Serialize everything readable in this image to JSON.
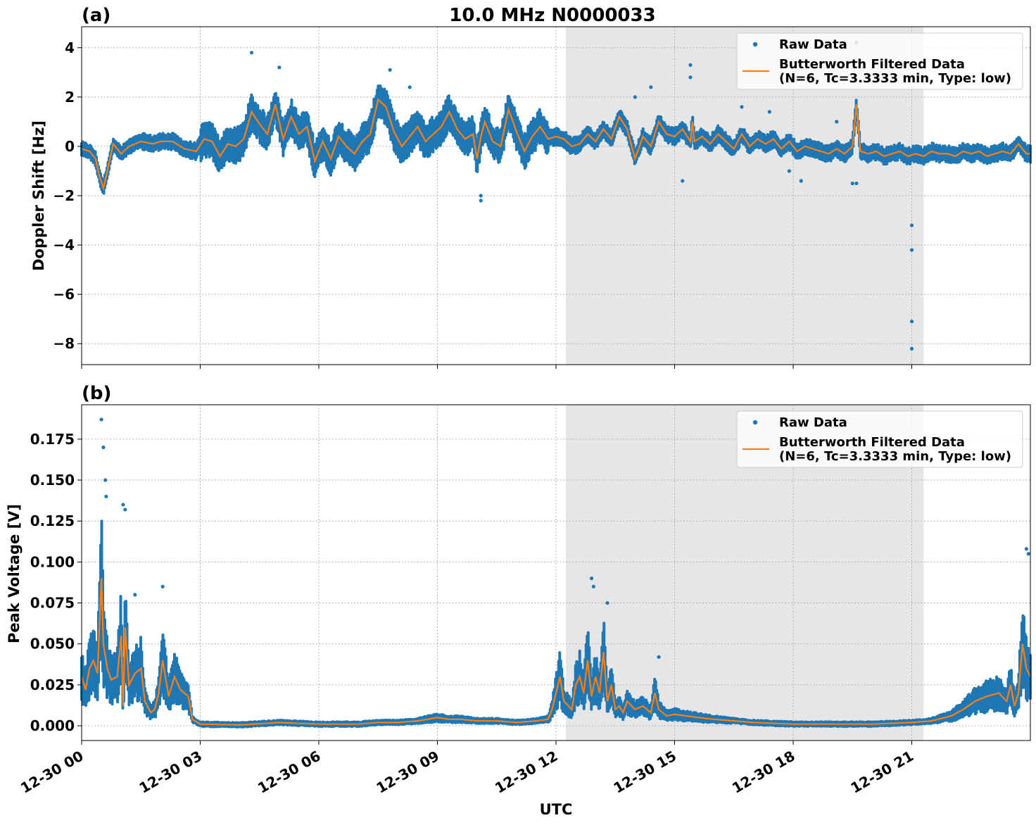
{
  "figure": {
    "title": "10.0 MHz N0000033",
    "xlabel": "UTC",
    "x_tick_labels": [
      "12-30 00",
      "12-30 03",
      "12-30 06",
      "12-30 09",
      "12-30 12",
      "12-30 15",
      "12-30 18",
      "12-30 21"
    ]
  },
  "colors": {
    "raw": "#1f77b4",
    "filtered": "#ff7f0e",
    "shade": "#e6e6e6"
  },
  "chart_data": [
    {
      "type": "scatter",
      "panel_label": "(a)",
      "ylabel": "Doppler Shift [Hz]",
      "xlabel": "UTC",
      "x_units": "hours UTC on 12-30",
      "xlim": [
        0,
        24
      ],
      "ylim": [
        -8.85,
        4.85
      ],
      "yticks": [
        4,
        2,
        0,
        -2,
        -4,
        -6,
        -8
      ],
      "ytick_labels": [
        "4",
        "2",
        "0",
        "−2",
        "−4",
        "−6",
        "−8"
      ],
      "grid": true,
      "shaded_interval": [
        12.25,
        21.3
      ],
      "legend": {
        "position": "upper right",
        "raw_label": "Raw Data",
        "filtered_label_line1": "Butterworth Filtered Data",
        "filtered_label_line2": "(N=6, Tc=3.3333 min, Type: low)"
      },
      "series": [
        {
          "name": "Butterworth Filtered Data",
          "x": [
            0,
            0.2,
            0.35,
            0.45,
            0.55,
            0.65,
            0.8,
            1.0,
            1.2,
            1.5,
            1.8,
            2.0,
            2.3,
            2.6,
            2.9,
            3.1,
            3.3,
            3.5,
            3.7,
            3.9,
            4.1,
            4.3,
            4.5,
            4.7,
            4.9,
            5.1,
            5.3,
            5.5,
            5.7,
            5.9,
            6.1,
            6.3,
            6.5,
            6.7,
            6.9,
            7.1,
            7.3,
            7.5,
            7.7,
            7.9,
            8.1,
            8.3,
            8.5,
            8.7,
            8.9,
            9.1,
            9.3,
            9.5,
            9.7,
            9.9,
            10.0,
            10.1,
            10.2,
            10.4,
            10.6,
            10.8,
            11.0,
            11.2,
            11.4,
            11.6,
            11.8,
            12.0,
            12.2,
            12.4,
            12.6,
            12.8,
            13.0,
            13.2,
            13.4,
            13.6,
            13.8,
            14.0,
            14.2,
            14.4,
            14.6,
            14.8,
            15.0,
            15.2,
            15.4,
            15.45,
            15.5,
            15.7,
            15.9,
            16.1,
            16.3,
            16.5,
            16.7,
            16.9,
            17.1,
            17.3,
            17.5,
            17.7,
            17.9,
            18.1,
            18.3,
            18.5,
            18.7,
            18.9,
            19.1,
            19.3,
            19.5,
            19.6,
            19.7,
            19.9,
            20.1,
            20.3,
            20.5,
            20.7,
            20.9,
            21.1,
            21.3,
            21.5,
            21.7,
            21.9,
            22.1,
            22.3,
            22.5,
            22.7,
            22.9,
            23.1,
            23.3,
            23.5,
            23.7,
            23.9,
            24.0
          ],
          "y": [
            -0.1,
            -0.2,
            -0.5,
            -1.2,
            -1.7,
            -1.0,
            0.1,
            -0.3,
            0.0,
            0.2,
            0.1,
            0.2,
            0.2,
            -0.1,
            -0.2,
            0.3,
            0.2,
            -0.4,
            0.1,
            0.0,
            0.3,
            1.4,
            0.9,
            0.5,
            1.7,
            0.3,
            1.2,
            0.5,
            0.8,
            -0.6,
            0.2,
            -0.5,
            0.4,
            0.0,
            -0.3,
            0.2,
            0.5,
            1.9,
            1.6,
            0.6,
            0.0,
            0.4,
            0.8,
            0.2,
            0.5,
            0.8,
            1.4,
            0.7,
            0.3,
            0.5,
            -0.5,
            0.4,
            1.0,
            0.2,
            0.0,
            1.5,
            0.6,
            -0.2,
            0.4,
            0.8,
            0.3,
            0.4,
            0.3,
            0.0,
            0.1,
            0.5,
            0.2,
            0.7,
            0.3,
            1.2,
            0.7,
            -0.5,
            0.4,
            0.0,
            1.0,
            0.5,
            0.4,
            0.7,
            0.2,
            1.0,
            0.2,
            0.4,
            0.1,
            0.5,
            0.2,
            -0.1,
            0.5,
            0.0,
            0.3,
            0.1,
            0.3,
            -0.1,
            0.2,
            -0.2,
            0.0,
            -0.1,
            -0.2,
            -0.3,
            -0.1,
            -0.3,
            0.0,
            1.7,
            -0.2,
            -0.3,
            -0.2,
            -0.4,
            -0.3,
            -0.2,
            -0.4,
            -0.3,
            -0.4,
            -0.2,
            -0.3,
            -0.3,
            -0.4,
            -0.2,
            -0.3,
            -0.2,
            -0.4,
            -0.3,
            -0.2,
            -0.3,
            0.1,
            -0.3,
            -0.3
          ]
        },
        {
          "name": "Raw Data",
          "outliers_x": [
            4.3,
            5.0,
            7.8,
            8.3,
            10.1,
            10.1,
            14.0,
            14.4,
            15.4,
            15.4,
            15.2,
            16.7,
            17.4,
            17.9,
            18.2,
            19.1,
            19.5,
            19.6,
            19.6,
            21.0,
            21.0,
            21.0,
            21.0
          ],
          "outliers_y": [
            3.8,
            3.2,
            3.1,
            2.4,
            -2.2,
            -2.0,
            2.0,
            2.4,
            3.3,
            2.8,
            -1.4,
            1.6,
            1.4,
            -1.0,
            -1.4,
            1.0,
            -1.5,
            4.2,
            -1.5,
            -3.2,
            -4.2,
            -7.1,
            -8.2
          ]
        }
      ]
    },
    {
      "type": "scatter",
      "panel_label": "(b)",
      "ylabel": "Peak Voltage [V]",
      "xlabel": "UTC",
      "x_units": "hours UTC on 12-30",
      "xlim": [
        0,
        24
      ],
      "ylim": [
        -0.009,
        0.196
      ],
      "yticks": [
        0.0,
        0.025,
        0.05,
        0.075,
        0.1,
        0.125,
        0.15,
        0.175
      ],
      "ytick_labels": [
        "0.000",
        "0.025",
        "0.050",
        "0.075",
        "0.100",
        "0.125",
        "0.150",
        "0.175"
      ],
      "grid": true,
      "shaded_interval": [
        12.25,
        21.3
      ],
      "legend": {
        "position": "upper right",
        "raw_label": "Raw Data",
        "filtered_label_line1": "Butterworth Filtered Data",
        "filtered_label_line2": "(N=6, Tc=3.3333 min, Type: low)"
      },
      "series": [
        {
          "name": "Butterworth Filtered Data",
          "x": [
            0,
            0.1,
            0.2,
            0.3,
            0.4,
            0.5,
            0.55,
            0.65,
            0.75,
            0.9,
            1.0,
            1.05,
            1.1,
            1.2,
            1.35,
            1.5,
            1.6,
            1.75,
            1.85,
            1.95,
            2.05,
            2.2,
            2.35,
            2.5,
            2.7,
            2.8,
            3.0,
            4.0,
            5.0,
            5.5,
            6.0,
            7.0,
            7.5,
            8.0,
            8.5,
            9.0,
            9.3,
            9.6,
            10.0,
            10.5,
            11.0,
            11.5,
            11.8,
            11.9,
            12.0,
            12.1,
            12.2,
            12.4,
            12.5,
            12.6,
            12.7,
            12.8,
            12.9,
            13.0,
            13.1,
            13.2,
            13.3,
            13.4,
            13.5,
            13.6,
            13.7,
            13.8,
            14.0,
            14.2,
            14.4,
            14.5,
            14.6,
            14.8,
            15.0,
            15.3,
            15.6,
            16.0,
            16.5,
            17.0,
            18.0,
            19.0,
            20.0,
            21.0,
            21.5,
            22.0,
            22.3,
            22.6,
            22.9,
            23.2,
            23.4,
            23.5,
            23.6,
            23.7,
            23.8,
            23.9,
            24.0
          ],
          "y": [
            0.03,
            0.022,
            0.035,
            0.04,
            0.032,
            0.09,
            0.05,
            0.035,
            0.028,
            0.03,
            0.055,
            0.012,
            0.06,
            0.025,
            0.032,
            0.035,
            0.015,
            0.008,
            0.01,
            0.02,
            0.04,
            0.018,
            0.03,
            0.022,
            0.018,
            0.004,
            0.001,
            0.0005,
            0.002,
            0.0015,
            0.001,
            0.001,
            0.002,
            0.002,
            0.003,
            0.005,
            0.004,
            0.004,
            0.003,
            0.003,
            0.002,
            0.003,
            0.004,
            0.01,
            0.02,
            0.03,
            0.015,
            0.01,
            0.025,
            0.03,
            0.02,
            0.04,
            0.018,
            0.03,
            0.02,
            0.045,
            0.015,
            0.025,
            0.01,
            0.012,
            0.008,
            0.015,
            0.01,
            0.012,
            0.008,
            0.02,
            0.01,
            0.006,
            0.007,
            0.006,
            0.005,
            0.004,
            0.003,
            0.002,
            0.001,
            0.001,
            0.001,
            0.002,
            0.003,
            0.006,
            0.01,
            0.015,
            0.018,
            0.02,
            0.015,
            0.025,
            0.012,
            0.02,
            0.05,
            0.035,
            0.03
          ]
        },
        {
          "name": "Raw Data",
          "outliers_x": [
            0.5,
            0.55,
            0.6,
            0.62,
            1.05,
            1.1,
            1.35,
            2.05,
            12.9,
            12.95,
            13.3,
            14.6,
            23.9,
            23.95
          ],
          "outliers_y": [
            0.187,
            0.17,
            0.15,
            0.14,
            0.135,
            0.132,
            0.08,
            0.085,
            0.09,
            0.085,
            0.075,
            0.042,
            0.108,
            0.105
          ]
        }
      ]
    }
  ]
}
